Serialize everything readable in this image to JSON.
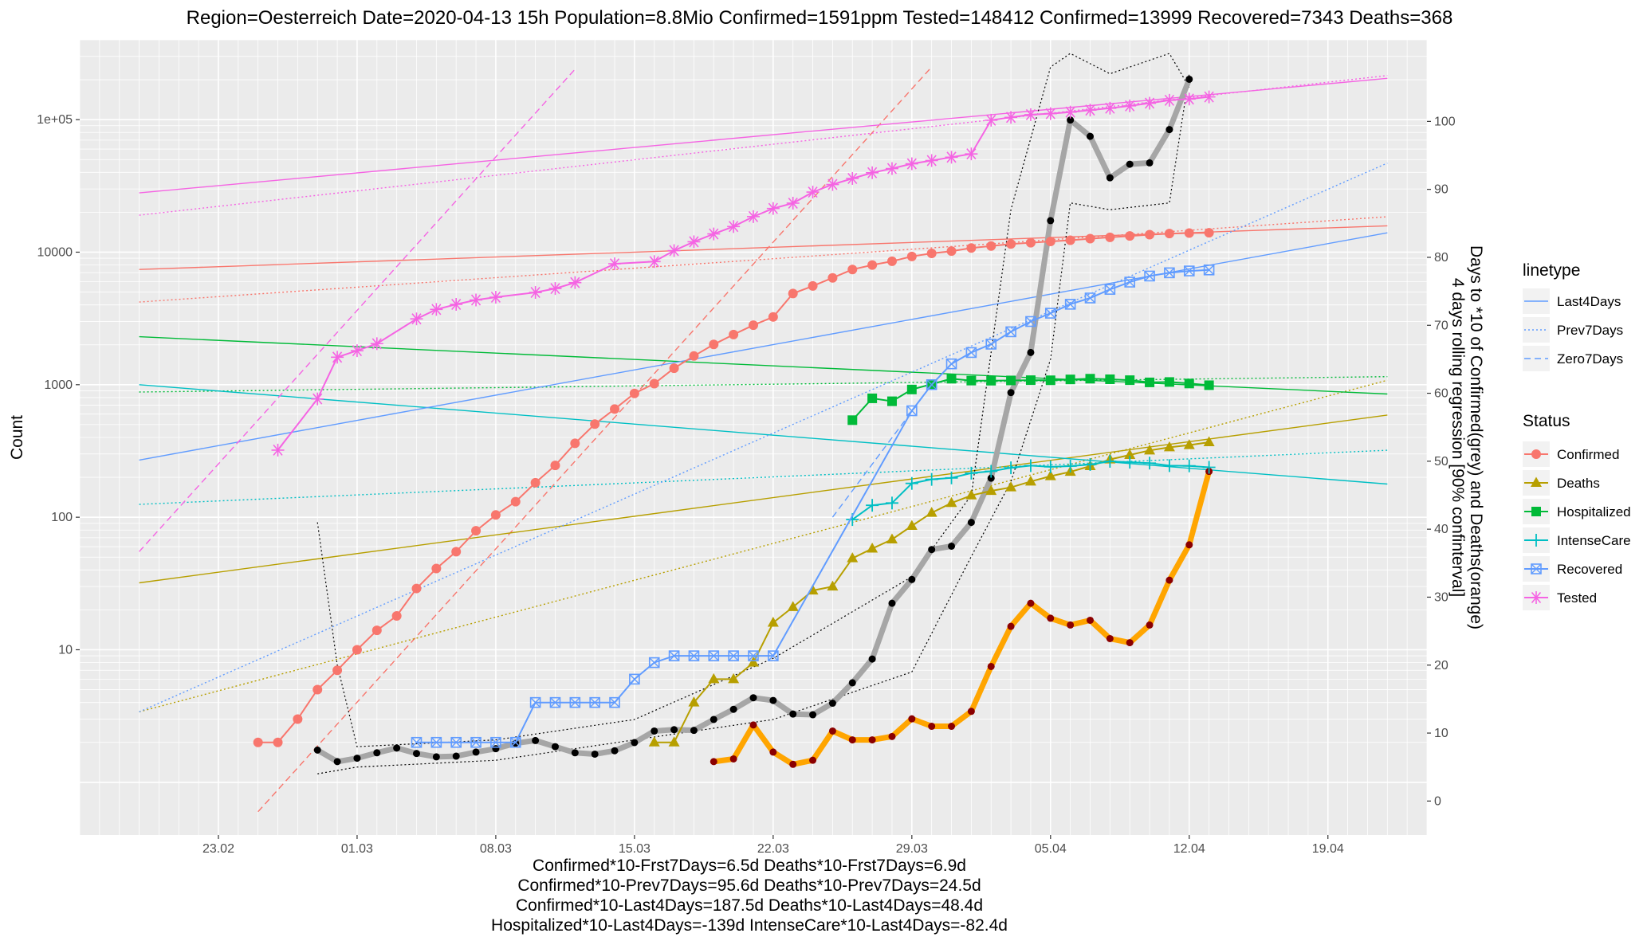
{
  "chart_data": {
    "type": "line",
    "title": "Region=Oesterreich Date=2020-04-13 15h  Population=8.8Mio Confirmed=1591ppm  Tested=148412  Confirmed=13999  Recovered=7343  Deaths=368",
    "ylabel": "Count",
    "y2label_line1": "Days to *10 of Confirmed(grey) and Deaths(orange)",
    "y2label_line2": "4 days rolling regression [90% confinterval]",
    "y_scale": "log10",
    "ylim": [
      0.4,
      400000
    ],
    "y2lim": [
      -5,
      112
    ],
    "xlim": [
      "2020-02-16",
      "2020-04-24"
    ],
    "x_start": "2020-02-16",
    "x_end": "2020-04-24",
    "x_ticks": [
      {
        "date": "2020-02-23",
        "label": "23.02"
      },
      {
        "date": "2020-03-01",
        "label": "01.03"
      },
      {
        "date": "2020-03-08",
        "label": "08.03"
      },
      {
        "date": "2020-03-15",
        "label": "15.03"
      },
      {
        "date": "2020-03-22",
        "label": "22.03"
      },
      {
        "date": "2020-03-29",
        "label": "29.03"
      },
      {
        "date": "2020-04-05",
        "label": "05.04"
      },
      {
        "date": "2020-04-12",
        "label": "12.04"
      },
      {
        "date": "2020-04-19",
        "label": "19.04"
      }
    ],
    "y_ticks": [
      {
        "value": 10,
        "label": "10"
      },
      {
        "value": 100,
        "label": "100"
      },
      {
        "value": 1000,
        "label": "1000"
      },
      {
        "value": 10000,
        "label": "10000"
      },
      {
        "value": 100000,
        "label": "1e+05"
      }
    ],
    "y2_ticks": [
      {
        "value": 0,
        "label": "0"
      },
      {
        "value": 10,
        "label": "10"
      },
      {
        "value": 20,
        "label": "20"
      },
      {
        "value": 30,
        "label": "30"
      },
      {
        "value": 40,
        "label": "40"
      },
      {
        "value": 50,
        "label": "50"
      },
      {
        "value": 60,
        "label": "60"
      },
      {
        "value": 70,
        "label": "70"
      },
      {
        "value": 80,
        "label": "80"
      },
      {
        "value": 90,
        "label": "90"
      },
      {
        "value": 100,
        "label": "100"
      }
    ],
    "grid": true,
    "legend_placement": "right",
    "series": [
      {
        "name": "Confirmed",
        "color": "#F8766D",
        "marker": "circle",
        "x": [
          "2020-02-25",
          "2020-02-26",
          "2020-02-27",
          "2020-02-28",
          "2020-02-29",
          "2020-03-01",
          "2020-03-02",
          "2020-03-03",
          "2020-03-04",
          "2020-03-05",
          "2020-03-06",
          "2020-03-07",
          "2020-03-08",
          "2020-03-09",
          "2020-03-10",
          "2020-03-11",
          "2020-03-12",
          "2020-03-13",
          "2020-03-14",
          "2020-03-15",
          "2020-03-16",
          "2020-03-17",
          "2020-03-18",
          "2020-03-19",
          "2020-03-20",
          "2020-03-21",
          "2020-03-22",
          "2020-03-23",
          "2020-03-24",
          "2020-03-25",
          "2020-03-26",
          "2020-03-27",
          "2020-03-28",
          "2020-03-29",
          "2020-03-30",
          "2020-03-31",
          "2020-04-01",
          "2020-04-02",
          "2020-04-03",
          "2020-04-04",
          "2020-04-05",
          "2020-04-06",
          "2020-04-07",
          "2020-04-08",
          "2020-04-09",
          "2020-04-10",
          "2020-04-11",
          "2020-04-12",
          "2020-04-13"
        ],
        "values": [
          2,
          2,
          3,
          5,
          7,
          10,
          14,
          18,
          29,
          41,
          55,
          79,
          104,
          131,
          182,
          246,
          361,
          504,
          655,
          860,
          1018,
          1332,
          1646,
          2013,
          2388,
          2814,
          3244,
          4876,
          5560,
          6398,
          7399,
          7995,
          8536,
          9286,
          9796,
          10180,
          10741,
          11129,
          11524,
          11781,
          12051,
          12297,
          12639,
          12942,
          13244,
          13555,
          13806,
          13945,
          13999
        ]
      },
      {
        "name": "Deaths",
        "color": "#B79F00",
        "marker": "triangle",
        "x": [
          "2020-03-16",
          "2020-03-17",
          "2020-03-18",
          "2020-03-19",
          "2020-03-20",
          "2020-03-21",
          "2020-03-22",
          "2020-03-23",
          "2020-03-24",
          "2020-03-25",
          "2020-03-26",
          "2020-03-27",
          "2020-03-28",
          "2020-03-29",
          "2020-03-30",
          "2020-03-31",
          "2020-04-01",
          "2020-04-02",
          "2020-04-03",
          "2020-04-04",
          "2020-04-05",
          "2020-04-06",
          "2020-04-07",
          "2020-04-08",
          "2020-04-09",
          "2020-04-10",
          "2020-04-11",
          "2020-04-12",
          "2020-04-13"
        ],
        "values": [
          2,
          2,
          4,
          6,
          6,
          8,
          16,
          21,
          28,
          30,
          49,
          58,
          68,
          86,
          108,
          128,
          146,
          158,
          168,
          186,
          204,
          220,
          243,
          273,
          295,
          319,
          337,
          350,
          368
        ]
      },
      {
        "name": "Hospitalized",
        "color": "#00BA38",
        "marker": "square",
        "x": [
          "2020-03-26",
          "2020-03-27",
          "2020-03-28",
          "2020-03-29",
          "2020-03-30",
          "2020-03-31",
          "2020-04-01",
          "2020-04-02",
          "2020-04-03",
          "2020-04-04",
          "2020-04-05",
          "2020-04-06",
          "2020-04-07",
          "2020-04-08",
          "2020-04-09",
          "2020-04-10",
          "2020-04-11",
          "2020-04-12",
          "2020-04-13"
        ],
        "values": [
          540,
          789,
          750,
          920,
          1010,
          1110,
          1074,
          1072,
          1077,
          1082,
          1080,
          1096,
          1110,
          1099,
          1082,
          1041,
          1048,
          1021,
          991
        ]
      },
      {
        "name": "IntenseCare",
        "color": "#00BFC4",
        "marker": "plus",
        "x": [
          "2020-03-26",
          "2020-03-27",
          "2020-03-28",
          "2020-03-29",
          "2020-03-30",
          "2020-03-31",
          "2020-04-01",
          "2020-04-02",
          "2020-04-03",
          "2020-04-04",
          "2020-04-05",
          "2020-04-06",
          "2020-04-07",
          "2020-04-08",
          "2020-04-09",
          "2020-04-10",
          "2020-04-11",
          "2020-04-12",
          "2020-04-13"
        ],
        "values": [
          96,
          123,
          128,
          180,
          193,
          198,
          215,
          222,
          236,
          245,
          240,
          243,
          250,
          264,
          260,
          256,
          245,
          244,
          238
        ]
      },
      {
        "name": "Recovered",
        "color": "#619CFF",
        "marker": "square-cross",
        "x": [
          "2020-03-04",
          "2020-03-05",
          "2020-03-06",
          "2020-03-07",
          "2020-03-08",
          "2020-03-09",
          "2020-03-10",
          "2020-03-11",
          "2020-03-12",
          "2020-03-13",
          "2020-03-14",
          "2020-03-15",
          "2020-03-16",
          "2020-03-17",
          "2020-03-18",
          "2020-03-19",
          "2020-03-20",
          "2020-03-21",
          "2020-03-22",
          "2020-03-29",
          "2020-03-30",
          "2020-03-31",
          "2020-04-01",
          "2020-04-02",
          "2020-04-03",
          "2020-04-04",
          "2020-04-05",
          "2020-04-06",
          "2020-04-07",
          "2020-04-08",
          "2020-04-09",
          "2020-04-10",
          "2020-04-11",
          "2020-04-12",
          "2020-04-13"
        ],
        "values": [
          2,
          2,
          2,
          2,
          2,
          2,
          4,
          4,
          4,
          4,
          4,
          6,
          8,
          9,
          9,
          9,
          9,
          9,
          9,
          636,
          1000,
          1436,
          1749,
          2022,
          2507,
          2998,
          3463,
          4046,
          4512,
          5240,
          5943,
          6604,
          6987,
          7214,
          7343
        ]
      },
      {
        "name": "Tested",
        "color": "#F564E3",
        "marker": "star",
        "x": [
          "2020-02-26",
          "2020-02-28",
          "2020-02-29",
          "2020-03-01",
          "2020-03-02",
          "2020-03-04",
          "2020-03-05",
          "2020-03-06",
          "2020-03-07",
          "2020-03-08",
          "2020-03-10",
          "2020-03-11",
          "2020-03-12",
          "2020-03-14",
          "2020-03-16",
          "2020-03-17",
          "2020-03-18",
          "2020-03-19",
          "2020-03-20",
          "2020-03-21",
          "2020-03-22",
          "2020-03-23",
          "2020-03-24",
          "2020-03-25",
          "2020-03-26",
          "2020-03-27",
          "2020-03-28",
          "2020-03-29",
          "2020-03-30",
          "2020-03-31",
          "2020-04-01",
          "2020-04-02",
          "2020-04-03",
          "2020-04-04",
          "2020-04-05",
          "2020-04-06",
          "2020-04-07",
          "2020-04-08",
          "2020-04-09",
          "2020-04-10",
          "2020-04-11",
          "2020-04-12",
          "2020-04-13"
        ],
        "values": [
          321,
          781,
          1612,
          1805,
          2039,
          3138,
          3698,
          4037,
          4357,
          4570,
          4967,
          5318,
          5893,
          8167,
          8490,
          10278,
          11977,
          13724,
          15613,
          18545,
          21368,
          23429,
          28391,
          32407,
          35995,
          39747,
          42750,
          46441,
          49135,
          52042,
          55142,
          99000,
          104000,
          109000,
          111000,
          114000,
          118000,
          122000,
          127000,
          133000,
          140000,
          143000,
          148412
        ]
      }
    ],
    "fit_lines": [
      {
        "name": "Confirmed Last4Days",
        "color": "#F8766D",
        "linetype": "solid",
        "x": [
          "2020-02-19",
          "2020-04-22"
        ],
        "values": [
          7400,
          15800
        ]
      },
      {
        "name": "Confirmed Prev7Days",
        "color": "#F8766D",
        "linetype": "dotted",
        "x": [
          "2020-02-19",
          "2020-04-22"
        ],
        "values": [
          4200,
          18500
        ]
      },
      {
        "name": "Confirmed Zero7Days",
        "color": "#F8766D",
        "linetype": "dashed",
        "x": [
          "2020-02-25",
          "2020-03-30"
        ],
        "values": [
          0.6,
          250000
        ]
      },
      {
        "name": "Deaths Last4Days",
        "color": "#B79F00",
        "linetype": "solid",
        "x": [
          "2020-02-19",
          "2020-04-22"
        ],
        "values": [
          32,
          590
        ]
      },
      {
        "name": "Deaths Prev7Days",
        "color": "#B79F00",
        "linetype": "dotted",
        "x": [
          "2020-02-19",
          "2020-04-22"
        ],
        "values": [
          3.4,
          1080
        ]
      },
      {
        "name": "Hospitalized Last4Days",
        "color": "#00BA38",
        "linetype": "solid",
        "x": [
          "2020-02-19",
          "2020-04-22"
        ],
        "values": [
          2300,
          850
        ]
      },
      {
        "name": "Hospitalized Prev7Days",
        "color": "#00BA38",
        "linetype": "dotted",
        "x": [
          "2020-02-19",
          "2020-04-22"
        ],
        "values": [
          880,
          1150
        ]
      },
      {
        "name": "IntenseCare Last4Days",
        "color": "#00BFC4",
        "linetype": "solid",
        "x": [
          "2020-02-19",
          "2020-04-22"
        ],
        "values": [
          1000,
          178
        ]
      },
      {
        "name": "IntenseCare Prev7Days",
        "color": "#00BFC4",
        "linetype": "dotted",
        "x": [
          "2020-02-19",
          "2020-04-22"
        ],
        "values": [
          125,
          320
        ]
      },
      {
        "name": "Recovered Last4Days",
        "color": "#619CFF",
        "linetype": "solid",
        "x": [
          "2020-02-19",
          "2020-04-22"
        ],
        "values": [
          270,
          14000
        ]
      },
      {
        "name": "Recovered Prev7Days",
        "color": "#619CFF",
        "linetype": "dotted",
        "x": [
          "2020-02-19",
          "2020-04-22"
        ],
        "values": [
          3.4,
          47000
        ]
      },
      {
        "name": "Recovered Zero7Days",
        "color": "#619CFF",
        "linetype": "dashed",
        "x": [
          "2020-03-25",
          "2020-03-30"
        ],
        "values": [
          100,
          1000
        ]
      },
      {
        "name": "Tested Last4Days",
        "color": "#F564E3",
        "linetype": "solid",
        "x": [
          "2020-02-19",
          "2020-04-22"
        ],
        "values": [
          28000,
          205000
        ]
      },
      {
        "name": "Tested Prev7Days",
        "color": "#F564E3",
        "linetype": "dotted",
        "x": [
          "2020-02-19",
          "2020-04-22"
        ],
        "values": [
          19000,
          215000
        ]
      },
      {
        "name": "Tested Zero7Days",
        "color": "#F564E3",
        "linetype": "dashed",
        "x": [
          "2020-02-19",
          "2020-03-12"
        ],
        "values": [
          55,
          240000
        ]
      }
    ],
    "doubling_series": [
      {
        "name": "Confirmed doubling (grey)",
        "color": "#A6A6A6",
        "point_color": "#000000",
        "x": [
          "2020-02-28",
          "2020-02-29",
          "2020-03-01",
          "2020-03-02",
          "2020-03-03",
          "2020-03-04",
          "2020-03-05",
          "2020-03-06",
          "2020-03-07",
          "2020-03-08",
          "2020-03-09",
          "2020-03-10",
          "2020-03-11",
          "2020-03-12",
          "2020-03-13",
          "2020-03-14",
          "2020-03-15",
          "2020-03-16",
          "2020-03-17",
          "2020-03-18",
          "2020-03-19",
          "2020-03-20",
          "2020-03-21",
          "2020-03-22",
          "2020-03-23",
          "2020-03-24",
          "2020-03-25",
          "2020-03-26",
          "2020-03-27",
          "2020-03-28",
          "2020-03-29",
          "2020-03-30",
          "2020-03-31",
          "2020-04-01",
          "2020-04-02",
          "2020-04-03",
          "2020-04-04",
          "2020-04-05",
          "2020-04-06",
          "2020-04-07",
          "2020-04-08",
          "2020-04-09",
          "2020-04-10",
          "2020-04-11",
          "2020-04-12"
        ],
        "values": [
          7.5,
          5.8,
          6.3,
          7.1,
          7.8,
          7.0,
          6.5,
          6.6,
          7.2,
          7.7,
          8.5,
          8.9,
          8.0,
          7.1,
          6.9,
          7.4,
          8.6,
          10.3,
          10.5,
          10.4,
          12.0,
          13.5,
          15.2,
          14.8,
          12.8,
          12.7,
          14.4,
          17.4,
          20.9,
          29.1,
          32.6,
          37.0,
          37.5,
          41.0,
          47.5,
          60.1,
          66.0,
          85.4,
          100.2,
          97.8,
          91.7,
          93.7,
          93.9,
          98.8,
          106.2
        ]
      },
      {
        "name": "Deaths doubling (orange)",
        "color": "#FFA500",
        "point_color": "#8B0000",
        "x": [
          "2020-03-19",
          "2020-03-20",
          "2020-03-21",
          "2020-03-22",
          "2020-03-23",
          "2020-03-24",
          "2020-03-25",
          "2020-03-26",
          "2020-03-27",
          "2020-03-28",
          "2020-03-29",
          "2020-03-30",
          "2020-03-31",
          "2020-04-01",
          "2020-04-02",
          "2020-04-03",
          "2020-04-04",
          "2020-04-05",
          "2020-04-06",
          "2020-04-07",
          "2020-04-08",
          "2020-04-09",
          "2020-04-10",
          "2020-04-11",
          "2020-04-12",
          "2020-04-13"
        ],
        "values": [
          5.8,
          6.2,
          11.2,
          7.2,
          5.4,
          6.0,
          10.3,
          9.0,
          9.0,
          9.5,
          12.1,
          11.0,
          11.0,
          13.2,
          19.8,
          25.7,
          29.1,
          26.9,
          25.9,
          26.6,
          23.9,
          23.3,
          25.9,
          32.5,
          37.7,
          48.5
        ]
      }
    ],
    "ci_bands": [
      {
        "name": "Confirmed 90% CI lower",
        "color": "#000000",
        "linetype": "dotted",
        "x": [
          "2020-02-28",
          "2020-03-01",
          "2020-03-08",
          "2020-03-15",
          "2020-03-22",
          "2020-03-29",
          "2020-04-01",
          "2020-04-03",
          "2020-04-05",
          "2020-04-06",
          "2020-04-08",
          "2020-04-11",
          "2020-04-12"
        ],
        "values": [
          4,
          5,
          6,
          9,
          12,
          19,
          36,
          47,
          65,
          88,
          87,
          88,
          107
        ]
      },
      {
        "name": "Confirmed 90% CI upper",
        "color": "#000000",
        "linetype": "dotted",
        "x": [
          "2020-02-28",
          "2020-02-29",
          "2020-03-01",
          "2020-03-08",
          "2020-03-15",
          "2020-03-22",
          "2020-03-29",
          "2020-04-01",
          "2020-04-03",
          "2020-04-05",
          "2020-04-06",
          "2020-04-08",
          "2020-04-11",
          "2020-04-12"
        ],
        "values": [
          41,
          20,
          8,
          9,
          12,
          21,
          33,
          45,
          87,
          108,
          110,
          107,
          110,
          105
        ]
      }
    ]
  },
  "subtitle_lines": [
    "Confirmed*10-Frst7Days=6.5d  Deaths*10-Frst7Days=6.9d",
    "Confirmed*10-Prev7Days=95.6d  Deaths*10-Prev7Days=24.5d",
    "Confirmed*10-Last4Days=187.5d  Deaths*10-Last4Days=48.4d",
    "Hospitalized*10-Last4Days=-139d  IntenseCare*10-Last4Days=-82.4d"
  ],
  "legend": {
    "linetype_title": "linetype",
    "linetype_items": [
      "Last4Days",
      "Prev7Days",
      "Zero7Days"
    ],
    "status_title": "Status",
    "status_items": [
      "Confirmed",
      "Deaths",
      "Hospitalized",
      "IntenseCare",
      "Recovered",
      "Tested"
    ]
  }
}
